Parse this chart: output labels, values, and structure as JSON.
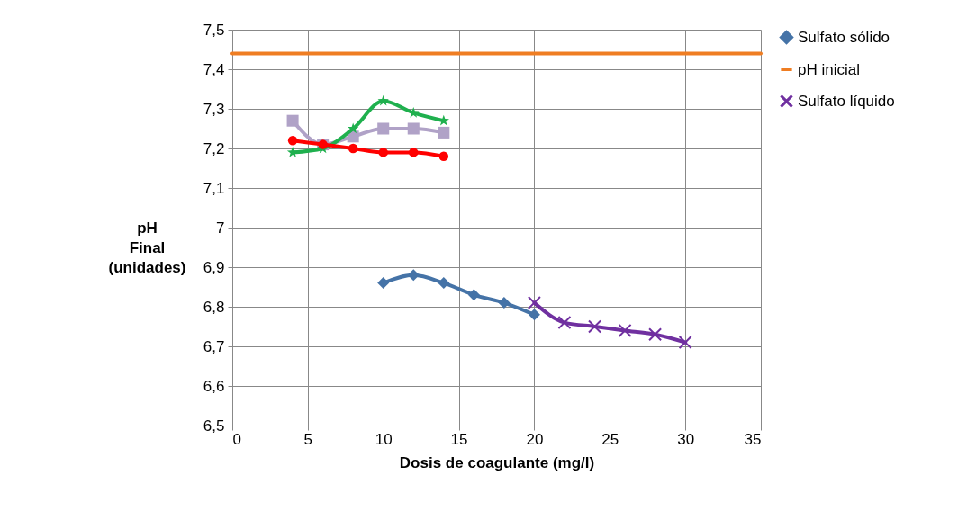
{
  "chart_data": {
    "type": "line",
    "xlabel": "Dosis de coagulante (mg/l)",
    "ylabel": "pH Final (unidades)",
    "xlim": [
      0,
      35
    ],
    "xticks": [
      0,
      5,
      10,
      15,
      20,
      25,
      30,
      35
    ],
    "ylim": [
      6.5,
      7.5
    ],
    "yticks": [
      {
        "value": 6.5,
        "label": "6,5"
      },
      {
        "value": 6.6,
        "label": "6,6"
      },
      {
        "value": 6.7,
        "label": "6,7"
      },
      {
        "value": 6.8,
        "label": "6,8"
      },
      {
        "value": 6.9,
        "label": "6,9"
      },
      7,
      {
        "value": 7.1,
        "label": "7,1"
      },
      {
        "value": 7.2,
        "label": "7,2"
      },
      {
        "value": 7.3,
        "label": "7,3"
      },
      {
        "value": 7.4,
        "label": "7,4"
      },
      {
        "value": 7.5,
        "label": "7,5"
      }
    ],
    "grid": true,
    "legend": "right",
    "series": [
      {
        "name": "Sulfato sólido",
        "color": "#4573a7",
        "marker": "diamond",
        "x": [
          10,
          12,
          14,
          16,
          18,
          20
        ],
        "values": [
          6.86,
          6.88,
          6.86,
          6.83,
          6.81,
          6.78
        ]
      },
      {
        "color": "#b0a2c7",
        "marker": "square",
        "x": [
          4,
          6,
          8,
          10,
          12,
          14
        ],
        "values": [
          7.27,
          7.21,
          7.23,
          7.25,
          7.25,
          7.24
        ]
      },
      {
        "name": "pH inicial",
        "color": "#ef7d22",
        "marker": "none",
        "x": [
          0,
          35
        ],
        "values": [
          7.44,
          7.44
        ]
      },
      {
        "name": "Sulfato líquido",
        "color": "#7030a0",
        "marker": "cross",
        "x": [
          20,
          22,
          24,
          26,
          28,
          30
        ],
        "values": [
          6.81,
          6.76,
          6.75,
          6.74,
          6.73,
          6.71
        ]
      },
      {
        "color": "#1fb04e",
        "marker": "star",
        "x": [
          4,
          6,
          8,
          10,
          12,
          14
        ],
        "values": [
          7.19,
          7.2,
          7.25,
          7.32,
          7.29,
          7.27
        ]
      },
      {
        "color": "#ff0000",
        "marker": "circle",
        "x": [
          4,
          6,
          8,
          10,
          12,
          14
        ],
        "values": [
          7.22,
          7.21,
          7.2,
          7.19,
          7.19,
          7.18
        ]
      }
    ]
  }
}
